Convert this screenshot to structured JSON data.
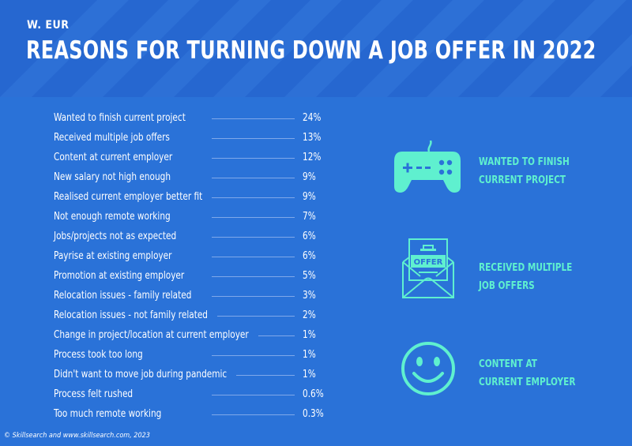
{
  "header": {
    "region": "W. EUR",
    "title": "REASONS FOR TURNING DOWN A JOB OFFER IN 2022"
  },
  "chart_data": {
    "type": "table",
    "rows": [
      {
        "label": "Wanted to finish current project",
        "value": "24%"
      },
      {
        "label": "Received multiple job offers",
        "value": "13%"
      },
      {
        "label": "Content at current employer",
        "value": "12%"
      },
      {
        "label": "New salary not high enough",
        "value": "9%"
      },
      {
        "label": "Realised current employer better fit",
        "value": "9%"
      },
      {
        "label": "Not enough remote working",
        "value": "7%"
      },
      {
        "label": "Jobs/projects not as expected",
        "value": "6%"
      },
      {
        "label": "Payrise at existing employer",
        "value": "6%"
      },
      {
        "label": "Promotion at existing employer",
        "value": "5%"
      },
      {
        "label": "Relocation issues - family related",
        "value": "3%"
      },
      {
        "label": "Relocation issues - not family related",
        "value": "2%"
      },
      {
        "label": "Change in project/location at current employer",
        "value": "1%"
      },
      {
        "label": "Process took too long",
        "value": "1%"
      },
      {
        "label": "Didn't want to move job during pandemic",
        "value": "1%"
      },
      {
        "label": "Process felt rushed",
        "value": "0.6%"
      },
      {
        "label": "Too much remote working",
        "value": "0.3%"
      }
    ]
  },
  "callouts": [
    {
      "icon": "game-controller-icon",
      "line1": "WANTED TO FINISH",
      "line2": "CURRENT PROJECT"
    },
    {
      "icon": "offer-envelope-icon",
      "line1": "RECEIVED MULTIPLE",
      "line2": "JOB OFFERS",
      "envelope_text": "OFFER"
    },
    {
      "icon": "smiley-face-icon",
      "line1": "CONTENT AT",
      "line2": "CURRENT EMPLOYER"
    }
  ],
  "colors": {
    "background": "#2a72d8",
    "header": "#2667d0",
    "accent": "#5ff0cf",
    "text": "#ffffff"
  },
  "footer": "© Skillsearch and www.skillsearch.com, 2023"
}
